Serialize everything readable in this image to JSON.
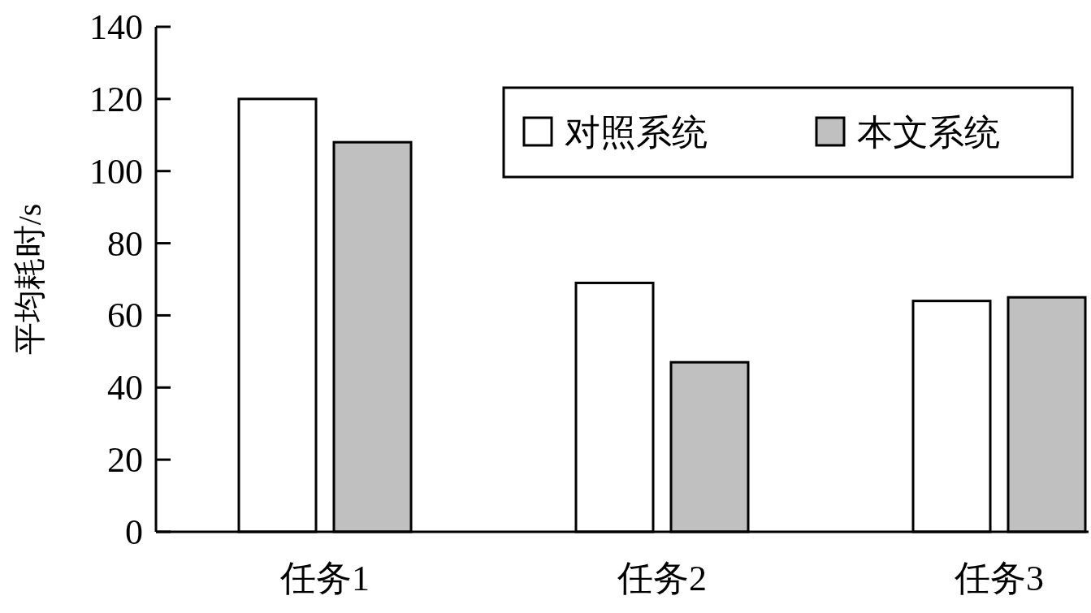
{
  "chart_data": {
    "type": "bar",
    "ylabel": "平均耗时/s",
    "categories": [
      "任务1",
      "任务2",
      "任务3"
    ],
    "series": [
      {
        "name": "对照系统",
        "color": "#ffffff",
        "values": [
          120,
          69,
          64
        ]
      },
      {
        "name": "本文系统",
        "color": "#c0c0c0",
        "values": [
          108,
          47,
          65
        ]
      }
    ],
    "ylim": [
      0,
      140
    ],
    "yticks": [
      0,
      20,
      40,
      60,
      80,
      100,
      120,
      140
    ],
    "legend": "top right"
  }
}
